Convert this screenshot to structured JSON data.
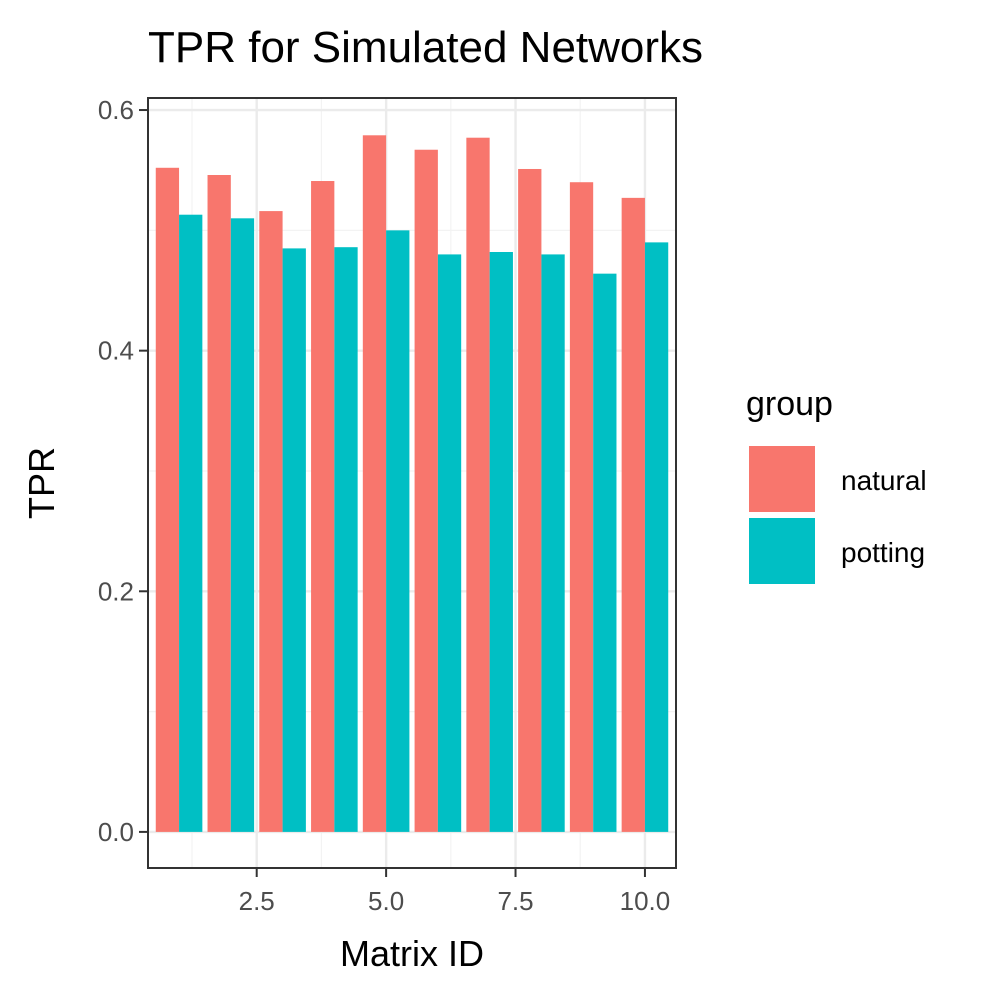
{
  "chart_data": {
    "type": "bar",
    "title": "TPR for Simulated Networks",
    "xlabel": "Matrix ID",
    "ylabel": "TPR",
    "x": [
      1,
      2,
      3,
      4,
      5,
      6,
      7,
      8,
      9,
      10
    ],
    "xlim": [
      0.4,
      10.6
    ],
    "ylim": [
      -0.03,
      0.61
    ],
    "x_ticks": [
      2.5,
      5.0,
      7.5,
      10.0
    ],
    "x_tick_labels": [
      "2.5",
      "5.0",
      "7.5",
      "10.0"
    ],
    "y_ticks": [
      0.0,
      0.2,
      0.4,
      0.6
    ],
    "y_tick_labels": [
      "0.0",
      "0.2",
      "0.4",
      "0.6"
    ],
    "grid": true,
    "legend": {
      "title": "group",
      "position": "right"
    },
    "series": [
      {
        "name": "natural",
        "color": "#F8766D",
        "values": [
          0.552,
          0.546,
          0.516,
          0.541,
          0.579,
          0.567,
          0.577,
          0.551,
          0.54,
          0.527
        ]
      },
      {
        "name": "potting",
        "color": "#00BFC4",
        "values": [
          0.513,
          0.51,
          0.485,
          0.486,
          0.5,
          0.48,
          0.482,
          0.48,
          0.464,
          0.49
        ]
      }
    ]
  }
}
